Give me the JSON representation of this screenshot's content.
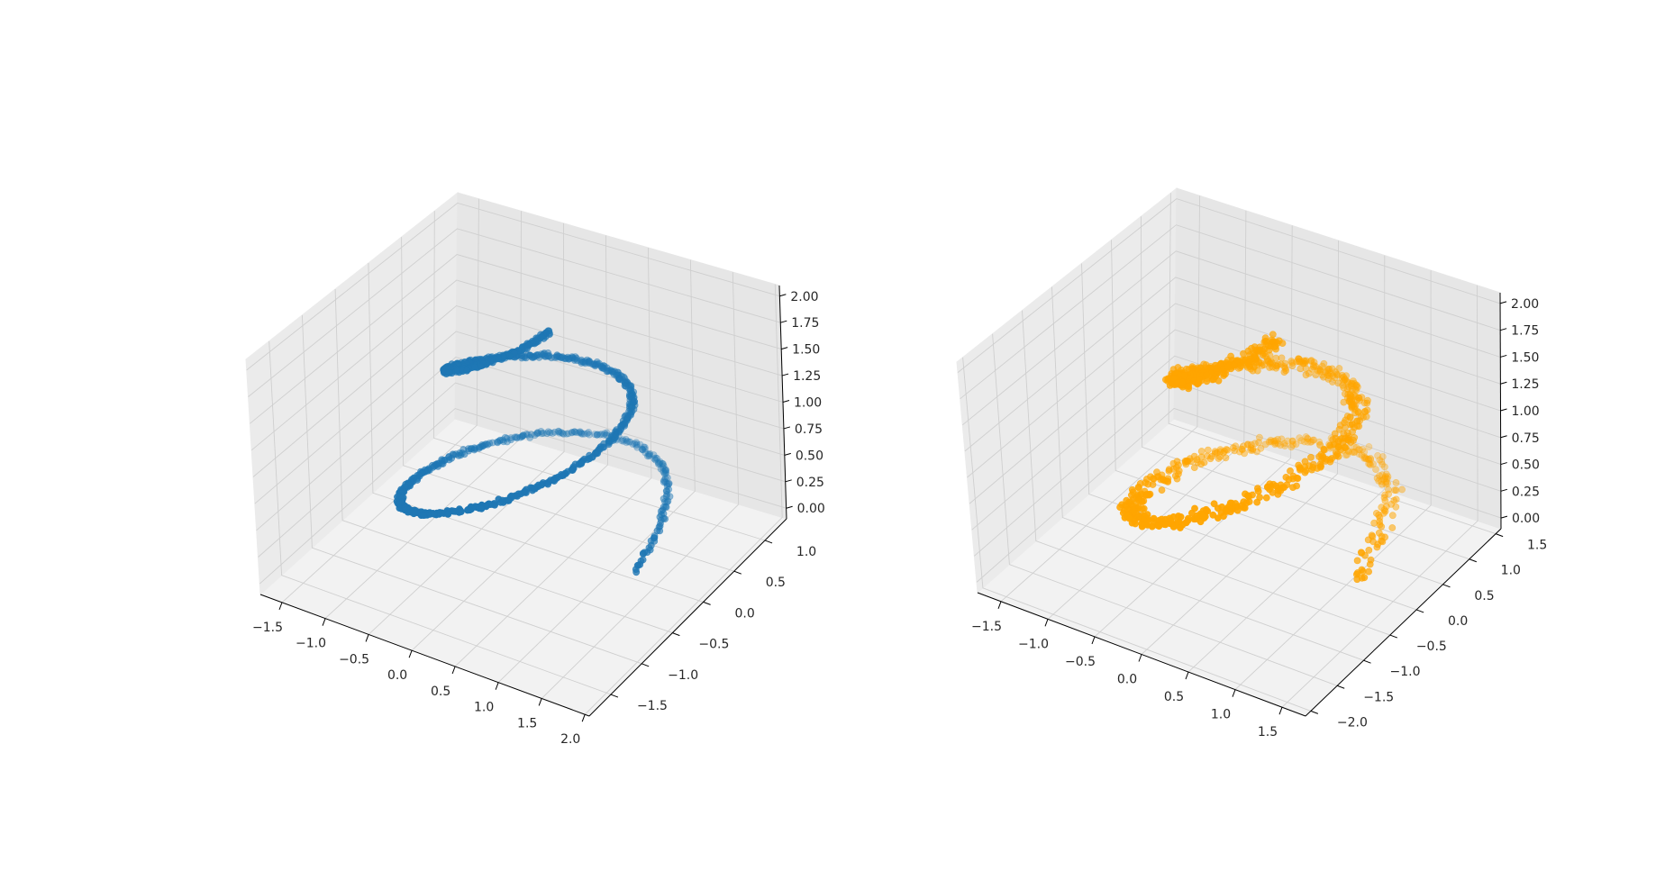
{
  "figure": {
    "background": "#ffffff"
  },
  "chart_data": [
    {
      "type": "scatter",
      "projection": "3d",
      "title": "",
      "xlabel": "",
      "ylabel": "",
      "zlabel": "",
      "xlim": [
        -1.75,
        2.05
      ],
      "ylim": [
        -1.85,
        1.35
      ],
      "zlim": [
        -0.1,
        2.1
      ],
      "x_ticks": [
        -1.5,
        -1.0,
        -0.5,
        0.0,
        0.5,
        1.0,
        1.5,
        2.0
      ],
      "x_tick_labels": [
        "−1.5",
        "−1.0",
        "−0.5",
        "0.0",
        "0.5",
        "1.0",
        "1.5",
        "2.0"
      ],
      "y_ticks": [
        -1.5,
        -1.0,
        -0.5,
        0.0,
        0.5,
        1.0
      ],
      "y_tick_labels": [
        "−1.5",
        "−1.0",
        "−0.5",
        "0.0",
        "0.5",
        "1.0"
      ],
      "z_ticks": [
        0.0,
        0.25,
        0.5,
        0.75,
        1.0,
        1.25,
        1.5,
        1.75,
        2.0
      ],
      "z_tick_labels": [
        "0.00",
        "0.25",
        "0.50",
        "0.75",
        "1.00",
        "1.25",
        "1.50",
        "1.75",
        "2.00"
      ],
      "grid": true,
      "series": [
        {
          "color": "#1f77b4",
          "pattern": "conical helix, one and a half turns rising from z=0 (outer radius) to z≈2.0 (inner end), low noise",
          "x": [
            1.3,
            1.15,
            0.93,
            0.66,
            0.35,
            0.03,
            -0.27,
            -0.54,
            -0.75,
            -0.89,
            -0.95,
            -0.94,
            -0.86,
            -0.71,
            -0.51,
            -0.28,
            -0.03,
            0.21,
            0.43,
            0.62,
            0.75,
            0.83,
            0.85,
            0.82,
            0.73,
            0.59,
            0.42,
            0.23,
            0.03,
            -0.16,
            -0.33,
            -0.47,
            -0.57,
            -0.62,
            -0.63,
            -0.59,
            -0.51,
            -0.41,
            -0.28,
            -0.14,
            0.0,
            0.12,
            0.22,
            0.29
          ],
          "y": [
            -0.03,
            0.58,
            1.04,
            1.27,
            1.35,
            1.29,
            1.13,
            0.87,
            0.55,
            0.19,
            -0.17,
            -0.51,
            -0.79,
            -0.99,
            -1.09,
            -1.09,
            -1.0,
            -0.83,
            -0.6,
            -0.34,
            -0.07,
            0.19,
            0.42,
            0.61,
            0.75,
            0.83,
            0.85,
            0.81,
            0.72,
            0.59,
            0.42,
            0.23,
            0.04,
            -0.14,
            -0.29,
            -0.41,
            -0.48,
            -0.5,
            -0.48,
            -0.42,
            -0.32,
            -0.2,
            -0.07,
            0.05
          ],
          "z": [
            0.0,
            0.05,
            0.09,
            0.14,
            0.18,
            0.23,
            0.27,
            0.32,
            0.36,
            0.41,
            0.45,
            0.5,
            0.55,
            0.59,
            0.64,
            0.68,
            0.73,
            0.77,
            0.82,
            0.86,
            0.91,
            0.95,
            1.0,
            1.05,
            1.09,
            1.14,
            1.18,
            1.23,
            1.27,
            1.32,
            1.36,
            1.41,
            1.45,
            1.5,
            1.55,
            1.59,
            1.64,
            1.68,
            1.73,
            1.77,
            1.82,
            1.86,
            1.91,
            1.95
          ]
        }
      ]
    },
    {
      "type": "scatter",
      "projection": "3d",
      "title": "",
      "xlabel": "",
      "ylabel": "",
      "zlabel": "",
      "xlim": [
        -1.75,
        1.75
      ],
      "ylim": [
        -2.1,
        1.6
      ],
      "zlim": [
        -0.1,
        2.1
      ],
      "x_ticks": [
        -1.5,
        -1.0,
        -0.5,
        0.0,
        0.5,
        1.0,
        1.5
      ],
      "x_tick_labels": [
        "−1.5",
        "−1.0",
        "−0.5",
        "0.0",
        "0.5",
        "1.0",
        "1.5"
      ],
      "y_ticks": [
        -2.0,
        -1.5,
        -1.0,
        -0.5,
        0.0,
        0.5,
        1.0,
        1.5
      ],
      "y_tick_labels": [
        "−2.0",
        "−1.5",
        "−1.0",
        "−0.5",
        "0.0",
        "0.5",
        "1.0",
        "1.5"
      ],
      "z_ticks": [
        0.0,
        0.25,
        0.5,
        0.75,
        1.0,
        1.25,
        1.5,
        1.75,
        2.0
      ],
      "z_tick_labels": [
        "0.00",
        "0.25",
        "0.50",
        "0.75",
        "1.00",
        "1.25",
        "1.50",
        "1.75",
        "2.00"
      ],
      "grid": true,
      "series": [
        {
          "color": "#ffa500",
          "pattern": "noisy conical helix, one and a half turns rising from z=0 to z≈2.0, higher scatter",
          "x": [
            1.1,
            0.98,
            0.79,
            0.56,
            0.3,
            0.03,
            -0.23,
            -0.46,
            -0.64,
            -0.76,
            -0.81,
            -0.8,
            -0.73,
            -0.6,
            -0.43,
            -0.24,
            -0.03,
            0.18,
            0.37,
            0.53,
            0.64,
            0.71,
            0.72,
            0.7,
            0.62,
            0.5,
            0.36,
            0.2,
            0.03,
            -0.14,
            -0.28,
            -0.4,
            -0.48,
            -0.53,
            -0.54,
            -0.5,
            -0.43,
            -0.35,
            -0.24,
            -0.12,
            0.0,
            0.1,
            0.19,
            0.25
          ],
          "y": [
            -0.04,
            0.68,
            1.22,
            1.5,
            1.59,
            1.52,
            1.33,
            1.02,
            0.65,
            0.22,
            -0.2,
            -0.6,
            -0.93,
            -1.16,
            -1.28,
            -1.28,
            -1.18,
            -0.98,
            -0.71,
            -0.4,
            -0.08,
            0.22,
            0.49,
            0.72,
            0.88,
            0.98,
            1.0,
            0.95,
            0.85,
            0.69,
            0.49,
            0.27,
            0.05,
            -0.16,
            -0.34,
            -0.48,
            -0.56,
            -0.59,
            -0.56,
            -0.49,
            -0.38,
            -0.24,
            -0.08,
            0.06
          ],
          "z": [
            0.0,
            0.05,
            0.09,
            0.14,
            0.18,
            0.23,
            0.27,
            0.32,
            0.36,
            0.41,
            0.45,
            0.5,
            0.55,
            0.59,
            0.64,
            0.68,
            0.73,
            0.77,
            0.82,
            0.86,
            0.91,
            0.95,
            1.0,
            1.05,
            1.09,
            1.14,
            1.18,
            1.23,
            1.27,
            1.32,
            1.36,
            1.41,
            1.45,
            1.5,
            1.55,
            1.59,
            1.64,
            1.68,
            1.73,
            1.77,
            1.82,
            1.86,
            1.91,
            1.95
          ]
        }
      ]
    }
  ]
}
